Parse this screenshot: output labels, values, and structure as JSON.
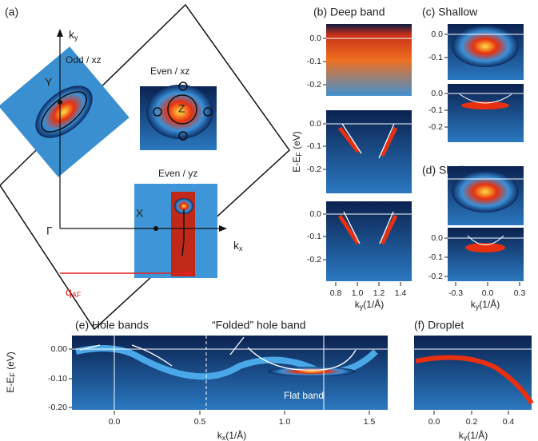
{
  "panel_a": {
    "label": "(a)",
    "axis_x": {
      "main": "k",
      "sub": "x"
    },
    "axis_y": {
      "main": "k",
      "sub": "y"
    },
    "gamma": "Γ",
    "x_point": "X",
    "y_point": "Y",
    "z_point": "Z",
    "insets": [
      "Odd / xz",
      "Even / xz",
      "Even / yz"
    ],
    "q": {
      "main": "q",
      "sub": "AF"
    }
  },
  "panel_b": {
    "label": "(b) Deep band",
    "yticks": [
      "0.0",
      "-0.1",
      "-0.2"
    ],
    "xticks": [
      "0.8",
      "1.0",
      "1.2",
      "1.4"
    ],
    "ylabel": {
      "main": "E-E",
      "sub": "F",
      "rest": " (eV)"
    },
    "xlabel": {
      "main": "k",
      "sub": "y",
      "rest": "(1/Å)"
    }
  },
  "panel_c": {
    "label": "(c) Shallow",
    "yticks_top": [
      "0.0",
      "-0.1"
    ],
    "yticks_bottom": [
      "0.0",
      "-0.1",
      "-0.2"
    ]
  },
  "panel_d": {
    "label": "(d) Shallow",
    "yticks": [
      "0.0",
      "-0.1",
      "-0.2"
    ],
    "xticks": [
      "-0.3",
      "0.0",
      "0.3"
    ],
    "xlabel": {
      "main": "k",
      "sub": "y",
      "rest": "(1/Å)"
    }
  },
  "panel_e": {
    "label": "(e) Hole bands",
    "annotation": "“Folded” hole band",
    "flat": "Flat band",
    "yticks": [
      "0.00",
      "-0.10",
      "-0.20"
    ],
    "xticks": [
      "0.0",
      "0.5",
      "1.0",
      "1.5"
    ],
    "ylabel": {
      "main": "E-E",
      "sub": "F",
      "rest": " (eV)"
    },
    "xlabel": {
      "main": "k",
      "sub": "x",
      "rest": "(1/Å)"
    }
  },
  "panel_f": {
    "label": "(f) Droplet",
    "xticks": [
      "0.0",
      "0.2",
      "0.4"
    ],
    "xlabel": {
      "main": "k",
      "sub": "y",
      "rest": "(1/Å)"
    }
  }
}
